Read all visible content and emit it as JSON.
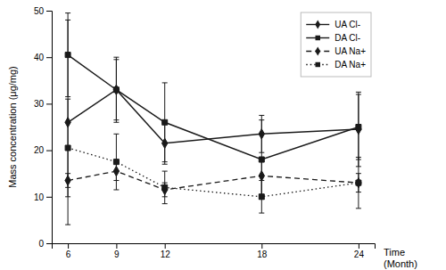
{
  "chart_data": {
    "type": "line",
    "ylabel": "Mass concentration (μg/mg)",
    "xlabel": "Time\n(Month)",
    "x": [
      6,
      9,
      12,
      18,
      24
    ],
    "series": [
      {
        "name": "UA Cl-",
        "color": "#1a1a1a",
        "marker": "diamond",
        "line_style": "solid",
        "values": [
          26,
          33,
          21.5,
          23.5,
          24.5
        ],
        "errors": [
          22,
          7,
          4.5,
          4,
          8
        ]
      },
      {
        "name": "DA Cl-",
        "color": "#1a1a1a",
        "marker": "square",
        "line_style": "solid",
        "values": [
          40.5,
          33,
          26,
          18,
          25
        ],
        "errors": [
          9,
          6.5,
          8.5,
          8.5,
          7
        ]
      },
      {
        "name": "UA Na+",
        "color": "#1a1a1a",
        "marker": "diamond",
        "line_style": "dashed",
        "values": [
          13.5,
          15.5,
          11.5,
          14.5,
          13
        ],
        "errors": [
          1.5,
          2,
          1.5,
          4,
          2
        ]
      },
      {
        "name": "DA Na+",
        "color": "#1a1a1a",
        "marker": "square",
        "line_style": "dotted",
        "values": [
          20.5,
          17.5,
          12,
          10,
          13
        ],
        "errors": [
          10.5,
          6,
          3.5,
          3.5,
          5.5
        ]
      }
    ],
    "xlim": [
      5,
      25
    ],
    "xticks": [
      6,
      9,
      12,
      18,
      24
    ],
    "ylim": [
      0,
      50
    ],
    "yticks": [
      0,
      10,
      20,
      30,
      40,
      50
    ],
    "grid": false,
    "legend": "upper right"
  }
}
